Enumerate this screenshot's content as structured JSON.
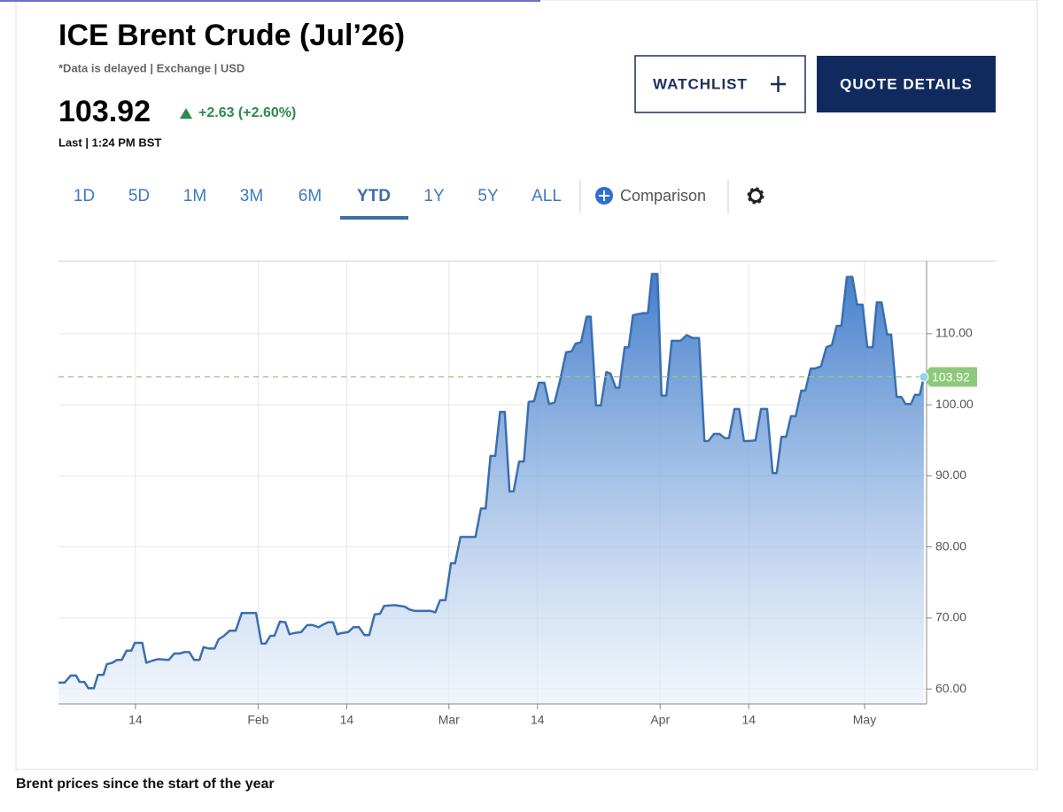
{
  "header": {
    "title": "ICE Brent Crude (Jul’26)",
    "subtitle": "*Data is delayed | Exchange | USD",
    "change": "+2.63 (+2.60%)",
    "last_time": "Last | 1:24 PM BST"
  },
  "buttons": [
    "WATCHLIST",
    "QUOTE DETAILS"
  ],
  "ranges": [
    "1D",
    "5D",
    "1M",
    "3M",
    "6M",
    "YTD",
    "1Y",
    "5Y",
    "ALL"
  ],
  "selected_range": "YTD",
  "comparison": "Comparison",
  "caption": "Brent prices since the start of the year",
  "chart_data": {
    "type": "area",
    "color": "#3a6fb0",
    "last": 103.92,
    "xlim": [
      2.7,
      130.1
    ],
    "ylim": [
      57.9,
      120.2
    ],
    "grid": true,
    "xticks": [
      14,
      {
        "value": 32,
        "label": "Feb"
      },
      {
        "value": 45,
        "label": "14"
      },
      {
        "value": 60,
        "label": "Mar"
      },
      {
        "value": 73,
        "label": "14"
      },
      {
        "value": 91,
        "label": "Apr"
      },
      {
        "value": 104,
        "label": "14"
      },
      {
        "value": 121,
        "label": "May"
      }
    ],
    "yticks": [
      {
        "value": 60,
        "label": "60.00"
      },
      {
        "value": 70,
        "label": "70.00"
      },
      {
        "value": 80,
        "label": "80.00"
      },
      {
        "value": 90,
        "label": "90.00"
      },
      {
        "value": 100,
        "label": "100.00"
      },
      {
        "value": 110,
        "label": "110.00"
      }
    ],
    "x": [
      2.7,
      3.6,
      4.5,
      5.3,
      5.8,
      6.5,
      7.1,
      7.9,
      8.5,
      9.3,
      9.8,
      10.6,
      11.3,
      12.0,
      12.7,
      13.4,
      13.9,
      15.0,
      15.6,
      16.5,
      17.3,
      18.9,
      19.7,
      20.5,
      21.2,
      21.9,
      22.6,
      23.4,
      24.0,
      24.8,
      25.6,
      26.2,
      27.0,
      27.8,
      28.7,
      29.6,
      31.7,
      32.5,
      33.1,
      33.8,
      34.4,
      35.2,
      36.0,
      36.6,
      37.4,
      38.3,
      39.2,
      40.0,
      40.9,
      41.6,
      42.3,
      43.0,
      43.6,
      44.4,
      45.2,
      46.0,
      46.8,
      47.6,
      48.3,
      49.1,
      49.9,
      50.5,
      52.0,
      52.8,
      53.5,
      54.2,
      55.0,
      55.7,
      57.3,
      58.0,
      58.7,
      59.5,
      60.3,
      60.9,
      61.7,
      63.9,
      64.7,
      65.4,
      66.1,
      66.8,
      67.5,
      68.2,
      68.9,
      69.5,
      70.3,
      71.0,
      71.7,
      72.5,
      73.2,
      74.0,
      74.7,
      75.5,
      76.3,
      77.2,
      78.0,
      78.6,
      79.4,
      80.2,
      80.8,
      81.6,
      82.3,
      83.1,
      83.7,
      84.5,
      85.0,
      85.8,
      86.4,
      87.0,
      88.5,
      89.2,
      89.8,
      90.6,
      91.2,
      91.9,
      92.7,
      94.0,
      94.9,
      95.8,
      96.7,
      97.5,
      98.1,
      98.9,
      99.7,
      100.5,
      101.1,
      101.9,
      102.6,
      103.3,
      104.1,
      105.0,
      105.8,
      106.7,
      107.5,
      108.1,
      108.8,
      109.5,
      110.2,
      110.9,
      111.7,
      112.3,
      113.1,
      113.7,
      114.6,
      115.4,
      116.2,
      116.9,
      117.6,
      118.4,
      119.2,
      119.9,
      120.7,
      121.4,
      122.2,
      122.8,
      123.5,
      124.3,
      124.9,
      125.7,
      126.4,
      127.0,
      127.8,
      128.4,
      129.1,
      129.7
    ],
    "values": [
      60.9,
      60.9,
      61.9,
      61.9,
      61.0,
      61.0,
      60.1,
      60.1,
      62.0,
      62.0,
      63.5,
      63.7,
      64.1,
      64.1,
      65.4,
      65.4,
      66.5,
      66.5,
      63.7,
      64.0,
      64.2,
      64.1,
      65.0,
      65.0,
      65.2,
      65.2,
      64.1,
      64.1,
      65.9,
      65.7,
      65.7,
      67.0,
      67.5,
      68.2,
      68.2,
      70.7,
      70.7,
      66.4,
      66.4,
      67.5,
      67.5,
      69.5,
      69.4,
      67.7,
      67.9,
      68.0,
      69.0,
      69.0,
      68.7,
      69.1,
      69.4,
      69.4,
      67.7,
      67.9,
      68.0,
      68.7,
      68.7,
      67.6,
      67.6,
      70.5,
      70.6,
      71.7,
      71.8,
      71.7,
      71.6,
      71.2,
      71.0,
      71.0,
      71.0,
      70.8,
      72.5,
      72.5,
      77.7,
      77.7,
      81.4,
      81.4,
      85.4,
      85.4,
      92.8,
      92.8,
      99.0,
      99.0,
      87.8,
      87.8,
      92.0,
      92.0,
      100.4,
      100.5,
      103.1,
      103.1,
      100.1,
      100.3,
      103.4,
      107.4,
      107.5,
      108.6,
      108.8,
      112.4,
      112.4,
      99.9,
      99.9,
      104.6,
      104.4,
      102.4,
      102.4,
      108.1,
      108.1,
      112.6,
      112.9,
      112.9,
      118.4,
      118.4,
      101.3,
      101.3,
      109.0,
      109.0,
      109.8,
      109.4,
      109.4,
      94.9,
      94.9,
      95.9,
      95.9,
      95.3,
      95.3,
      99.4,
      99.4,
      94.9,
      94.9,
      95.0,
      99.4,
      99.4,
      90.4,
      90.4,
      95.5,
      95.5,
      98.4,
      98.4,
      102.0,
      102.0,
      105.1,
      105.1,
      105.4,
      108.1,
      108.4,
      111.1,
      111.1,
      118.0,
      118.0,
      114.1,
      114.1,
      108.1,
      108.1,
      114.4,
      114.4,
      109.9,
      109.9,
      101.1,
      101.1,
      100.1,
      100.1,
      101.4,
      101.4,
      103.92
    ]
  }
}
